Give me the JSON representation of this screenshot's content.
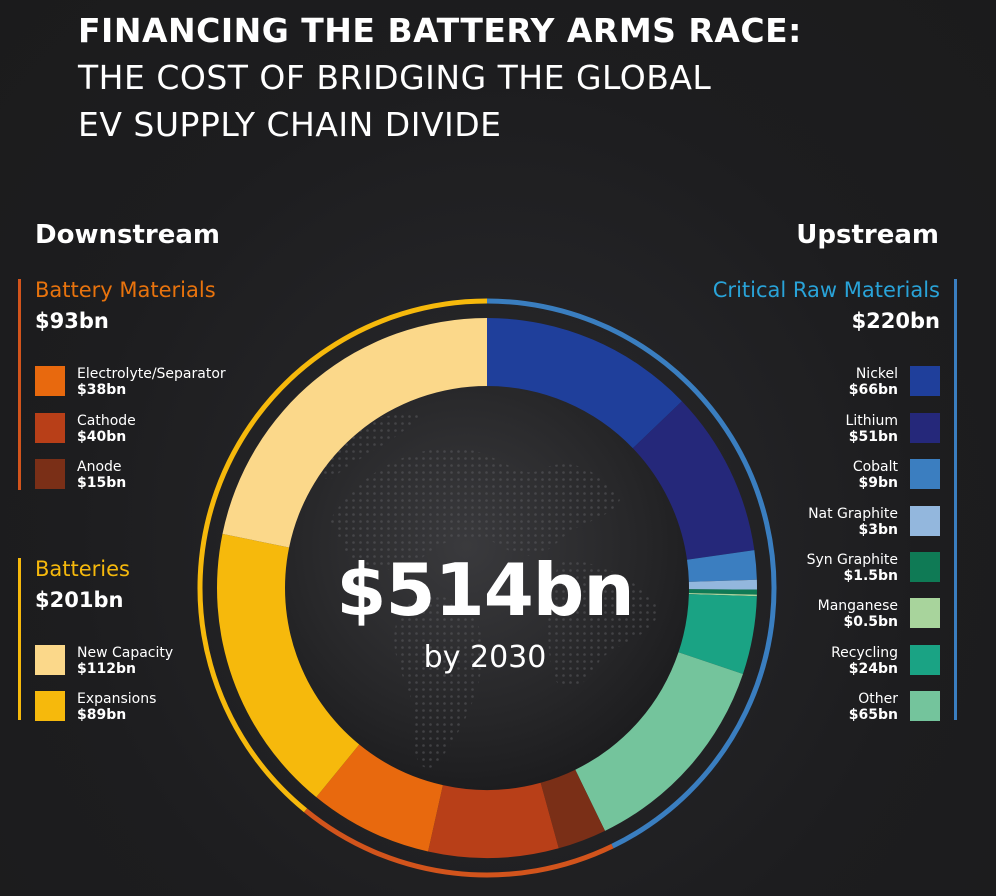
{
  "title": {
    "line1": "FINANCING THE BATTERY ARMS RACE:",
    "line2": "THE COST OF BRIDGING THE GLOBAL",
    "line3": "EV SUPPLY CHAIN DIVIDE"
  },
  "downstream_label": "Downstream",
  "upstream_label": "Upstream",
  "center": {
    "value": "$514bn",
    "subtitle": "by 2030"
  },
  "groups": {
    "battery_materials": {
      "title": "Battery Materials",
      "total": "$93bn",
      "color": "#e8730d"
    },
    "batteries": {
      "title": "Batteries",
      "total": "$201bn",
      "color": "#f6b90c"
    },
    "critical_raw": {
      "title": "Critical Raw Materials",
      "total": "$220bn",
      "color": "#29a3d8"
    }
  },
  "colors": {
    "outer_yellow": "#f6b90c",
    "outer_orange": "#d2541c",
    "outer_blue": "#3a7ec0",
    "background": "#1e1e20"
  },
  "chart_data": {
    "type": "donut",
    "title": "$514bn by 2030",
    "unit": "$bn",
    "total": 514,
    "start_angle_deg": 0,
    "direction": "clockwise",
    "slices": [
      {
        "label": "Nickel",
        "value": 66,
        "display": "$66bn",
        "group": "critical_raw",
        "color": "#1f3f9b"
      },
      {
        "label": "Lithium",
        "value": 51,
        "display": "$51bn",
        "group": "critical_raw",
        "color": "#25287a"
      },
      {
        "label": "Cobalt",
        "value": 9,
        "display": "$9bn",
        "group": "critical_raw",
        "color": "#3b7ec0"
      },
      {
        "label": "Nat Graphite",
        "value": 3,
        "display": "$3bn",
        "group": "critical_raw",
        "color": "#93b7dd"
      },
      {
        "label": "Syn Graphite",
        "value": 1.5,
        "display": "$1.5bn",
        "group": "critical_raw",
        "color": "#0f7a55"
      },
      {
        "label": "Manganese",
        "value": 0.5,
        "display": "$0.5bn",
        "group": "critical_raw",
        "color": "#a8d49c"
      },
      {
        "label": "Recycling",
        "value": 24,
        "display": "$24bn",
        "group": "critical_raw",
        "color": "#1aa384"
      },
      {
        "label": "Other",
        "value": 65,
        "display": "$65bn",
        "group": "critical_raw",
        "color": "#74c49c"
      },
      {
        "label": "Anode",
        "value": 15,
        "display": "$15bn",
        "group": "battery_materials",
        "color": "#7a2f17"
      },
      {
        "label": "Cathode",
        "value": 40,
        "display": "$40bn",
        "group": "battery_materials",
        "color": "#b83f18"
      },
      {
        "label": "Electrolyte/Separator",
        "value": 38,
        "display": "$38bn",
        "group": "battery_materials",
        "color": "#e8690e"
      },
      {
        "label": "Expansions",
        "value": 89,
        "display": "$89bn",
        "group": "batteries",
        "color": "#f6b90c"
      },
      {
        "label": "New Capacity",
        "value": 112,
        "display": "$112bn",
        "group": "batteries",
        "color": "#fbd88a"
      }
    ]
  }
}
